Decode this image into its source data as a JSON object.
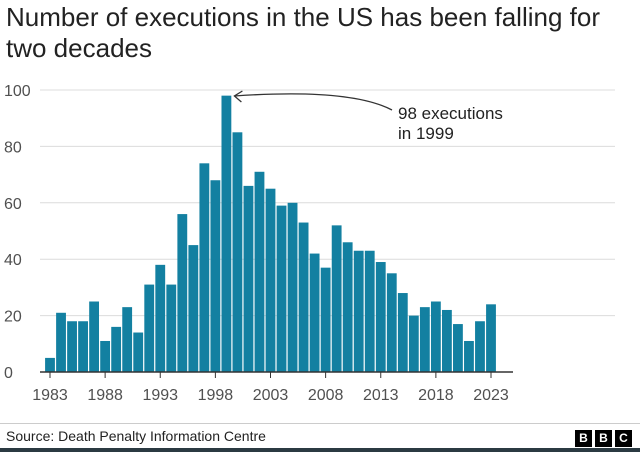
{
  "chart_data": {
    "type": "bar",
    "title": "Number of executions in the US has been falling for two decades",
    "categories": [
      1983,
      1984,
      1985,
      1986,
      1987,
      1988,
      1989,
      1990,
      1991,
      1992,
      1993,
      1994,
      1995,
      1996,
      1997,
      1998,
      1999,
      2000,
      2001,
      2002,
      2003,
      2004,
      2005,
      2006,
      2007,
      2008,
      2009,
      2010,
      2011,
      2012,
      2013,
      2014,
      2015,
      2016,
      2017,
      2018,
      2019,
      2020,
      2021,
      2022,
      2023
    ],
    "values": [
      5,
      21,
      18,
      18,
      25,
      11,
      16,
      23,
      14,
      31,
      38,
      31,
      56,
      45,
      74,
      68,
      98,
      85,
      66,
      71,
      65,
      59,
      60,
      53,
      42,
      37,
      52,
      46,
      43,
      43,
      39,
      35,
      28,
      20,
      23,
      25,
      22,
      17,
      11,
      18,
      24
    ],
    "xticks": [
      "1983",
      "1988",
      "1993",
      "1998",
      "2003",
      "2008",
      "2013",
      "2018",
      "2023"
    ],
    "yticks": [
      "0",
      "20",
      "40",
      "60",
      "80",
      "100"
    ],
    "ylim": [
      0,
      100
    ],
    "grid": true,
    "bar_color": "#1380A1",
    "annotation": {
      "lines": [
        "98 executions",
        "in 1999"
      ],
      "target": 1999
    },
    "source": "Source: Death Penalty Information Centre"
  },
  "logo": [
    "B",
    "B",
    "C"
  ]
}
